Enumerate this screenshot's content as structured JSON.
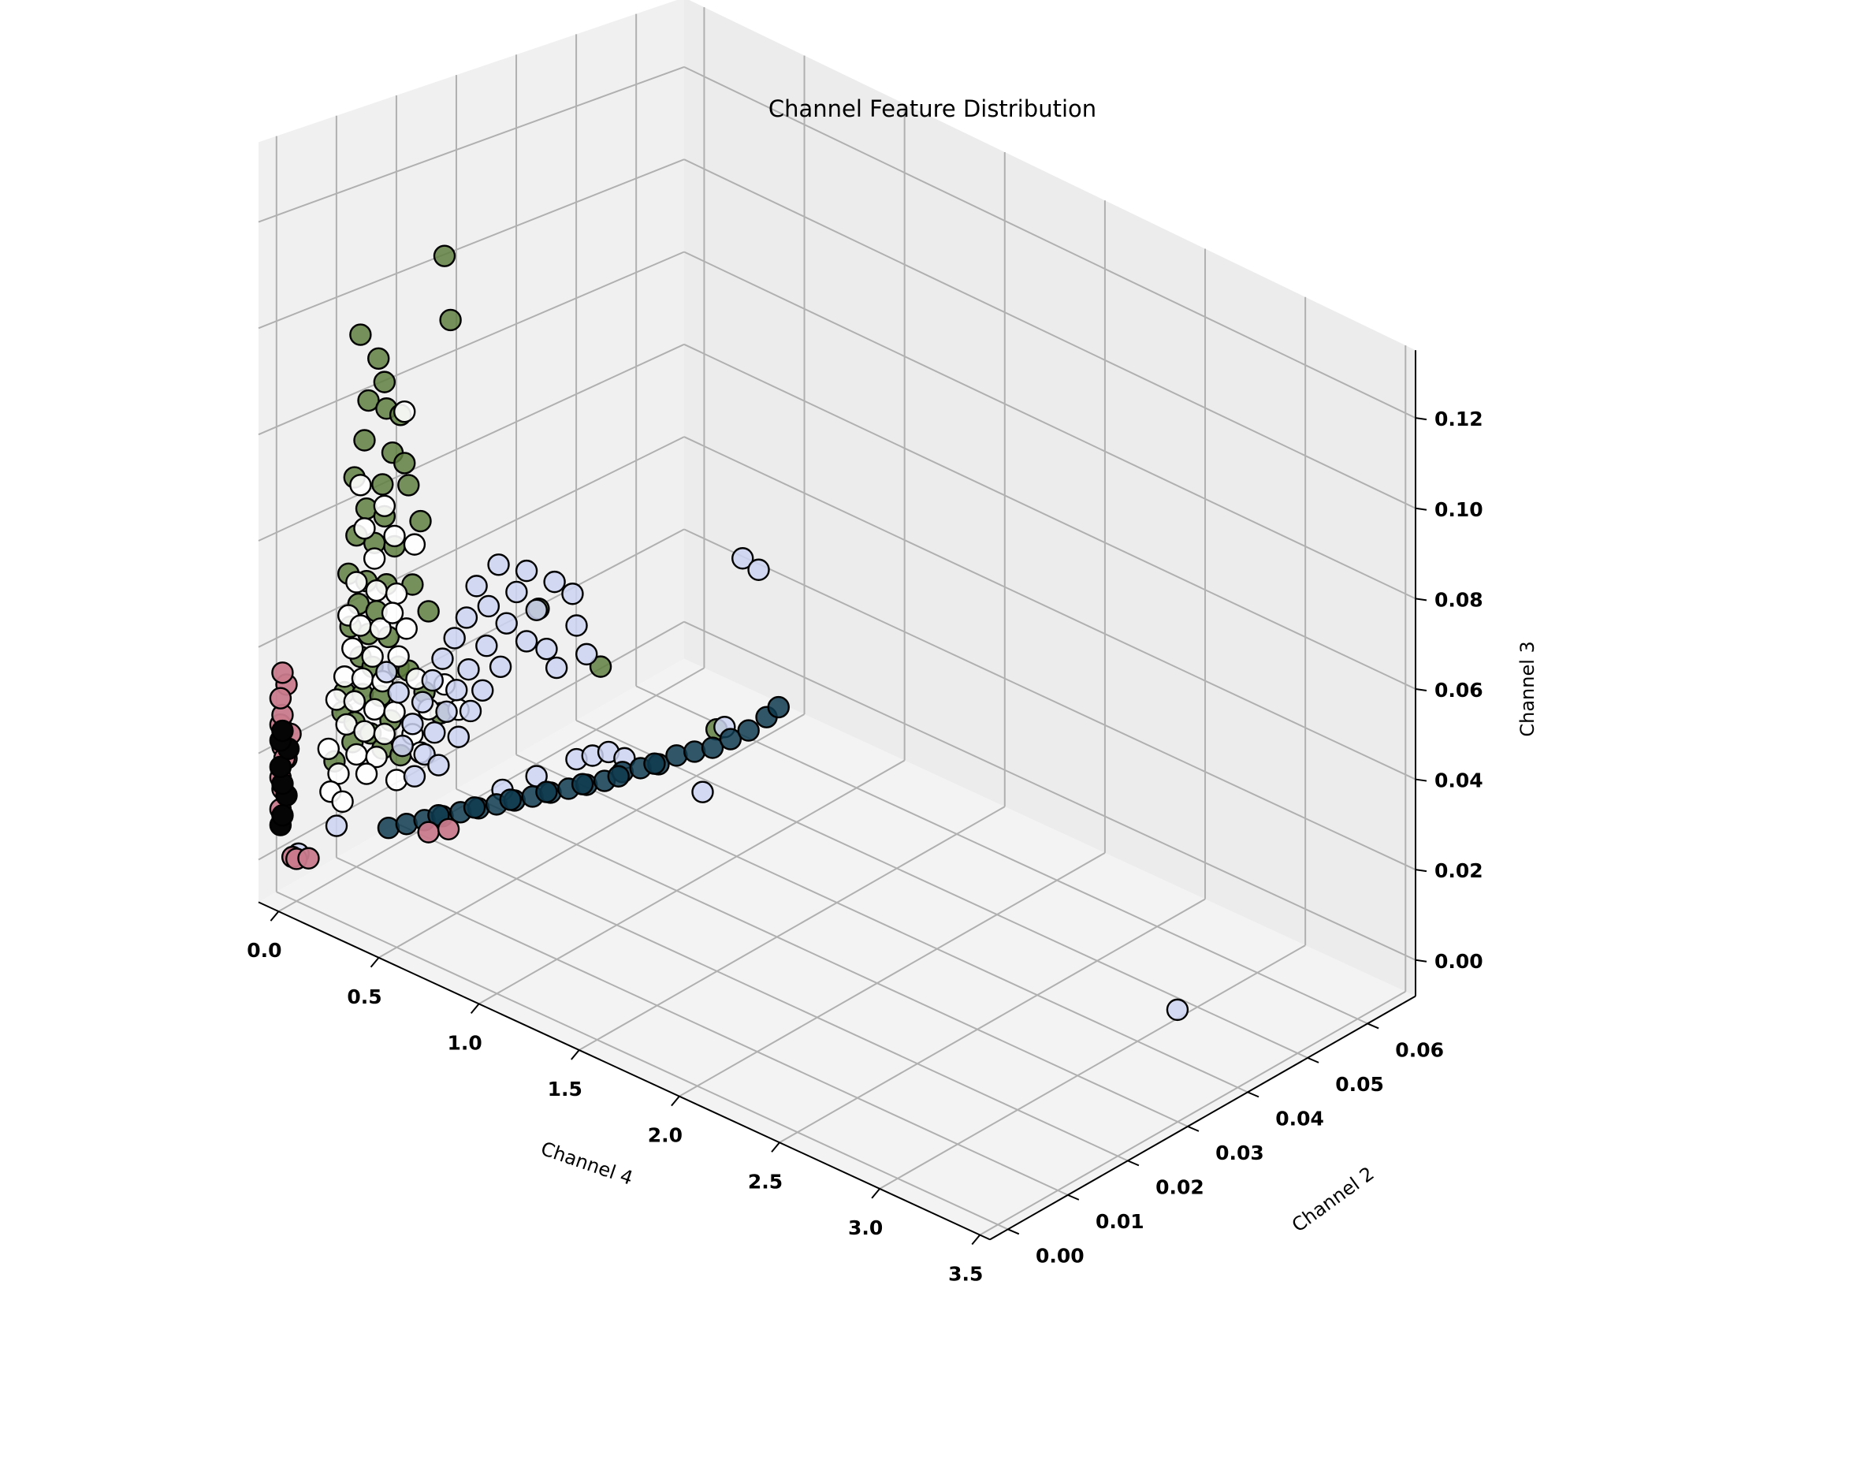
{
  "chart_data": {
    "type": "scatter",
    "subtype": "3d-scatter",
    "title": "Channel Feature Distribution",
    "xlabel": "Channel 4",
    "ylabel": "Channel 2",
    "zlabel": "Channel 3",
    "xlim": [
      -0.1,
      3.55
    ],
    "ylim": [
      -0.003,
      0.068
    ],
    "zlim": [
      -0.008,
      0.135
    ],
    "xticks": [
      "0.0",
      "0.5",
      "1.0",
      "1.5",
      "2.0",
      "2.5",
      "3.0",
      "3.5"
    ],
    "yticks": [
      "0.00",
      "0.01",
      "0.02",
      "0.03",
      "0.04",
      "0.05",
      "0.06"
    ],
    "zticks": [
      "0.00",
      "0.02",
      "0.04",
      "0.06",
      "0.08",
      "0.10",
      "0.12"
    ],
    "grid": true,
    "legend": "none",
    "series": [
      {
        "color": "#5f7f3f",
        "alpha": 0.85,
        "points": [
          [
            0.2,
            0.018,
            0.11
          ],
          [
            0.23,
            0.018,
            0.098
          ],
          [
            0.02,
            0.01,
            0.095
          ],
          [
            0.05,
            0.012,
            0.09
          ],
          [
            0.08,
            0.012,
            0.086
          ],
          [
            0.03,
            0.011,
            0.082
          ],
          [
            0.06,
            0.013,
            0.08
          ],
          [
            0.1,
            0.014,
            0.079
          ],
          [
            0.04,
            0.01,
            0.075
          ],
          [
            0.09,
            0.013,
            0.072
          ],
          [
            0.12,
            0.014,
            0.07
          ],
          [
            0.02,
            0.009,
            0.068
          ],
          [
            0.07,
            0.012,
            0.066
          ],
          [
            0.11,
            0.015,
            0.065
          ],
          [
            0.05,
            0.01,
            0.062
          ],
          [
            0.08,
            0.012,
            0.06
          ],
          [
            0.14,
            0.016,
            0.058
          ],
          [
            0.03,
            0.009,
            0.057
          ],
          [
            0.06,
            0.011,
            0.055
          ],
          [
            0.1,
            0.013,
            0.054
          ],
          [
            0.02,
            0.008,
            0.05
          ],
          [
            0.05,
            0.01,
            0.048
          ],
          [
            0.09,
            0.012,
            0.047
          ],
          [
            0.13,
            0.015,
            0.046
          ],
          [
            0.04,
            0.009,
            0.044
          ],
          [
            0.07,
            0.011,
            0.042
          ],
          [
            0.03,
            0.008,
            0.04
          ],
          [
            0.06,
            0.01,
            0.038
          ],
          [
            0.1,
            0.012,
            0.037
          ],
          [
            0.15,
            0.017,
            0.04
          ],
          [
            0.05,
            0.009,
            0.034
          ],
          [
            0.08,
            0.01,
            0.032
          ],
          [
            0.12,
            0.013,
            0.031
          ],
          [
            0.03,
            0.007,
            0.028
          ],
          [
            0.06,
            0.009,
            0.027
          ],
          [
            0.09,
            0.011,
            0.026
          ],
          [
            0.02,
            0.007,
            0.024
          ],
          [
            0.05,
            0.008,
            0.022
          ],
          [
            0.11,
            0.012,
            0.021
          ],
          [
            0.07,
            0.01,
            0.019
          ],
          [
            0.04,
            0.008,
            0.018
          ],
          [
            0.14,
            0.014,
            0.03
          ],
          [
            0.16,
            0.016,
            0.025
          ],
          [
            0.18,
            0.018,
            0.02
          ],
          [
            0.1,
            0.011,
            0.016
          ],
          [
            0.01,
            0.006,
            0.015
          ],
          [
            0.13,
            0.013,
            0.014
          ],
          [
            0.55,
            0.022,
            0.045
          ],
          [
            0.62,
            0.03,
            0.03
          ],
          [
            0.75,
            0.045,
            0.01
          ]
        ]
      },
      {
        "color": "#ffffff",
        "alpha": 0.9,
        "points": [
          [
            0.12,
            0.014,
            0.08
          ],
          [
            0.02,
            0.01,
            0.066
          ],
          [
            0.08,
            0.012,
            0.062
          ],
          [
            0.04,
            0.01,
            0.058
          ],
          [
            0.1,
            0.013,
            0.056
          ],
          [
            0.06,
            0.011,
            0.052
          ],
          [
            0.14,
            0.015,
            0.054
          ],
          [
            0.03,
            0.009,
            0.048
          ],
          [
            0.07,
            0.011,
            0.046
          ],
          [
            0.11,
            0.013,
            0.045
          ],
          [
            0.02,
            0.008,
            0.042
          ],
          [
            0.05,
            0.009,
            0.04
          ],
          [
            0.09,
            0.011,
            0.039
          ],
          [
            0.13,
            0.014,
            0.038
          ],
          [
            0.04,
            0.008,
            0.036
          ],
          [
            0.08,
            0.01,
            0.034
          ],
          [
            0.12,
            0.013,
            0.033
          ],
          [
            0.03,
            0.007,
            0.031
          ],
          [
            0.06,
            0.009,
            0.03
          ],
          [
            0.1,
            0.011,
            0.029
          ],
          [
            0.15,
            0.015,
            0.028
          ],
          [
            0.02,
            0.006,
            0.027
          ],
          [
            0.05,
            0.008,
            0.026
          ],
          [
            0.09,
            0.01,
            0.024
          ],
          [
            0.13,
            0.012,
            0.023
          ],
          [
            0.04,
            0.007,
            0.022
          ],
          [
            0.07,
            0.009,
            0.02
          ],
          [
            0.11,
            0.011,
            0.019
          ],
          [
            0.01,
            0.005,
            0.018
          ],
          [
            0.06,
            0.008,
            0.016
          ],
          [
            0.1,
            0.01,
            0.015
          ],
          [
            0.03,
            0.006,
            0.013
          ],
          [
            0.08,
            0.009,
            0.012
          ],
          [
            0.02,
            0.005,
            0.01
          ],
          [
            0.16,
            0.014,
            0.018
          ],
          [
            0.18,
            0.016,
            0.022
          ],
          [
            0.2,
            0.018,
            0.026
          ],
          [
            0.05,
            0.006,
            0.008
          ],
          [
            0.14,
            0.012,
            0.01
          ],
          [
            0.17,
            0.015,
            0.014
          ],
          [
            0.21,
            0.02,
            0.02
          ],
          [
            0.12,
            0.012,
            0.042
          ]
        ]
      },
      {
        "color": "#ccd4f2",
        "alpha": 0.85,
        "points": [
          [
            0.35,
            0.022,
            0.05
          ],
          [
            0.4,
            0.025,
            0.048
          ],
          [
            0.3,
            0.02,
            0.046
          ],
          [
            0.38,
            0.024,
            0.044
          ],
          [
            0.45,
            0.028,
            0.045
          ],
          [
            0.33,
            0.021,
            0.042
          ],
          [
            0.42,
            0.026,
            0.04
          ],
          [
            0.28,
            0.019,
            0.04
          ],
          [
            0.36,
            0.023,
            0.038
          ],
          [
            0.48,
            0.03,
            0.042
          ],
          [
            0.25,
            0.018,
            0.036
          ],
          [
            0.32,
            0.021,
            0.034
          ],
          [
            0.4,
            0.025,
            0.034
          ],
          [
            0.22,
            0.017,
            0.032
          ],
          [
            0.29,
            0.019,
            0.03
          ],
          [
            0.36,
            0.022,
            0.03
          ],
          [
            0.44,
            0.027,
            0.032
          ],
          [
            0.2,
            0.016,
            0.028
          ],
          [
            0.26,
            0.018,
            0.026
          ],
          [
            0.33,
            0.02,
            0.026
          ],
          [
            0.18,
            0.015,
            0.024
          ],
          [
            0.24,
            0.017,
            0.022
          ],
          [
            0.3,
            0.019,
            0.022
          ],
          [
            0.16,
            0.014,
            0.02
          ],
          [
            0.21,
            0.016,
            0.018
          ],
          [
            0.27,
            0.018,
            0.017
          ],
          [
            0.14,
            0.013,
            0.016
          ],
          [
            0.19,
            0.015,
            0.014
          ],
          [
            0.5,
            0.03,
            0.036
          ],
          [
            0.46,
            0.028,
            0.028
          ],
          [
            0.52,
            0.031,
            0.03
          ],
          [
            0.23,
            0.016,
            0.012
          ],
          [
            0.17,
            0.014,
            0.01
          ],
          [
            0.12,
            0.013,
            0.026
          ],
          [
            0.09,
            0.012,
            0.03
          ],
          [
            0.88,
            0.045,
            0.048
          ],
          [
            0.93,
            0.046,
            0.046
          ],
          [
            0.83,
            0.04,
            0.002
          ],
          [
            0.76,
            0.046,
            0.01
          ],
          [
            0.05,
            0.005,
            0.004
          ],
          [
            0.35,
            0.035,
            0.003
          ],
          [
            0.4,
            0.036,
            0.004
          ],
          [
            0.45,
            0.037,
            0.005
          ],
          [
            0.3,
            0.03,
            0.002
          ],
          [
            0.25,
            0.026,
            0.001
          ],
          [
            0.5,
            0.038,
            0.004
          ],
          [
            -0.02,
            0.001,
            0.0
          ],
          [
            3.05,
            0.045,
            -0.004
          ]
        ]
      },
      {
        "color": "#0e3a4e",
        "alpha": 0.85,
        "points": [
          [
            0.1,
            0.012,
            0.0
          ],
          [
            0.13,
            0.014,
            0.0
          ],
          [
            0.16,
            0.016,
            0.0
          ],
          [
            0.19,
            0.018,
            0.0
          ],
          [
            0.22,
            0.02,
            0.0
          ],
          [
            0.25,
            0.022,
            0.0
          ],
          [
            0.28,
            0.024,
            0.0
          ],
          [
            0.31,
            0.026,
            0.0
          ],
          [
            0.34,
            0.028,
            0.0
          ],
          [
            0.37,
            0.03,
            0.0
          ],
          [
            0.4,
            0.032,
            0.0
          ],
          [
            0.43,
            0.034,
            0.0
          ],
          [
            0.46,
            0.036,
            0.0
          ],
          [
            0.49,
            0.038,
            0.001
          ],
          [
            0.52,
            0.04,
            0.001
          ],
          [
            0.55,
            0.042,
            0.001
          ],
          [
            0.58,
            0.044,
            0.002
          ],
          [
            0.61,
            0.046,
            0.002
          ],
          [
            0.64,
            0.048,
            0.002
          ],
          [
            0.67,
            0.05,
            0.003
          ],
          [
            0.7,
            0.052,
            0.004
          ],
          [
            0.73,
            0.054,
            0.006
          ],
          [
            0.76,
            0.055,
            0.008
          ],
          [
            0.2,
            0.017,
            0.001
          ],
          [
            0.26,
            0.021,
            0.001
          ],
          [
            0.32,
            0.025,
            0.001
          ],
          [
            0.38,
            0.029,
            0.001
          ],
          [
            0.44,
            0.033,
            0.001
          ],
          [
            0.5,
            0.037,
            0.001
          ],
          [
            0.56,
            0.041,
            0.002
          ]
        ]
      },
      {
        "color": "#c97a8c",
        "alpha": 0.95,
        "points": [
          [
            -0.08,
            0.0,
            0.008
          ],
          [
            -0.08,
            0.0,
            0.014
          ],
          [
            -0.07,
            0.0,
            0.012
          ],
          [
            -0.08,
            0.001,
            0.017
          ],
          [
            -0.07,
            0.0,
            0.02
          ],
          [
            -0.08,
            0.0,
            0.024
          ],
          [
            -0.06,
            0.001,
            0.022
          ],
          [
            -0.07,
            0.0,
            0.026
          ],
          [
            -0.08,
            0.001,
            0.031
          ],
          [
            -0.07,
            0.0,
            0.034
          ],
          [
            -0.08,
            0.0,
            0.029
          ],
          [
            -0.06,
            0.0,
            0.018
          ],
          [
            0.18,
            0.016,
            -0.002
          ],
          [
            0.22,
            0.018,
            -0.002
          ],
          [
            -0.02,
            0.0,
            0.0
          ],
          [
            0.0,
            0.0,
            0.0
          ],
          [
            0.03,
            0.001,
            0.0
          ]
        ]
      },
      {
        "color": "#050505",
        "alpha": 1.0,
        "points": [
          [
            -0.08,
            0.0,
            0.005
          ],
          [
            -0.07,
            0.0,
            0.007
          ],
          [
            -0.08,
            0.001,
            0.01
          ],
          [
            -0.07,
            0.0,
            0.013
          ],
          [
            -0.08,
            0.0,
            0.016
          ],
          [
            -0.07,
            0.001,
            0.019
          ],
          [
            -0.08,
            0.0,
            0.021
          ],
          [
            -0.07,
            0.0,
            0.023
          ]
        ]
      }
    ]
  }
}
